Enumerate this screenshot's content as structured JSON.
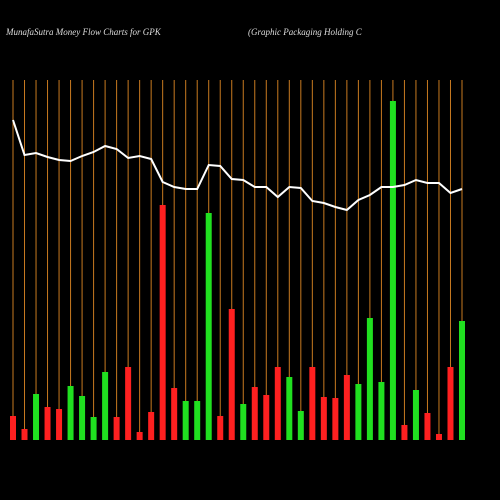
{
  "chart_data": {
    "type": "bar",
    "title": "MunafaSutra  Money Flow  Charts for GPK",
    "subtitle": "(Graphic Packaging Holding C",
    "values": [
      24,
      11,
      46,
      33,
      31,
      54,
      44,
      23,
      68,
      23,
      73,
      8,
      28,
      235,
      52,
      39,
      39,
      227,
      24,
      131,
      36,
      53,
      45,
      73,
      63,
      29,
      73,
      43,
      42,
      65,
      56,
      122,
      58,
      339,
      15,
      50,
      27,
      6,
      73,
      119
    ],
    "colors": [
      "#ff2020",
      "#ff2020",
      "#20e020",
      "#ff2020",
      "#ff2020",
      "#20e020",
      "#20e020",
      "#20e020",
      "#20e020",
      "#ff2020",
      "#ff2020",
      "#ff2020",
      "#ff2020",
      "#ff2020",
      "#ff2020",
      "#20e020",
      "#20e020",
      "#20e020",
      "#ff2020",
      "#ff2020",
      "#20e020",
      "#ff2020",
      "#ff2020",
      "#ff2020",
      "#20e020",
      "#20e020",
      "#ff2020",
      "#ff2020",
      "#ff2020",
      "#ff2020",
      "#20e020",
      "#20e020",
      "#20e020",
      "#20e020",
      "#ff2020",
      "#20e020",
      "#ff2020",
      "#ff2020",
      "#ff2020",
      "#20e020"
    ],
    "line": {
      "color": "#ffffff",
      "values": [
        320,
        285,
        287,
        283,
        280,
        279,
        284,
        288,
        294,
        291,
        282,
        284,
        281,
        258,
        253,
        251,
        251,
        275,
        274,
        261,
        260,
        253,
        253,
        243,
        253,
        252,
        239,
        237,
        233,
        230,
        240,
        245,
        253,
        253,
        255,
        260,
        257,
        257,
        247,
        251
      ]
    },
    "ylim": [
      0,
      340
    ],
    "grid_color": "#c87a20"
  }
}
